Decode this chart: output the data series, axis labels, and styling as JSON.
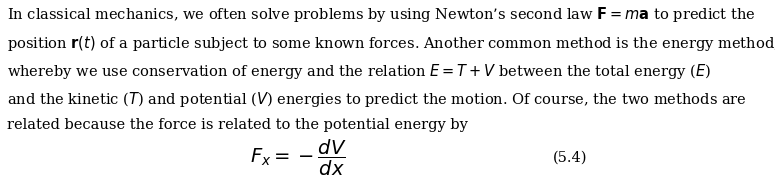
{
  "background_color": "#ffffff",
  "text_color": "#000000",
  "fig_width": 7.75,
  "fig_height": 1.83,
  "dpi": 100,
  "paragraph": "In classical mechanics, we often solve problems by using Newton’s second law $\\mathbf{F} = m\\mathbf{a}$ to predict the\nposition $\\mathbf{r}(t)$ of a particle subject to some known forces. Another common method is the energy method,\nwhereby we use conservation of energy and the relation $E = T + V$ between the total energy ($E$)\nand the kinetic ($T$) and potential ($V$) energies to predict the motion. Of course, the two methods are\nrelated because the force is related to the potential energy by",
  "equation": "$F_x = -\\dfrac{dV}{dx}$",
  "equation_number": "(5.4)",
  "text_fontsize": 10.5,
  "eq_fontsize": 12,
  "eq_num_fontsize": 10.5
}
